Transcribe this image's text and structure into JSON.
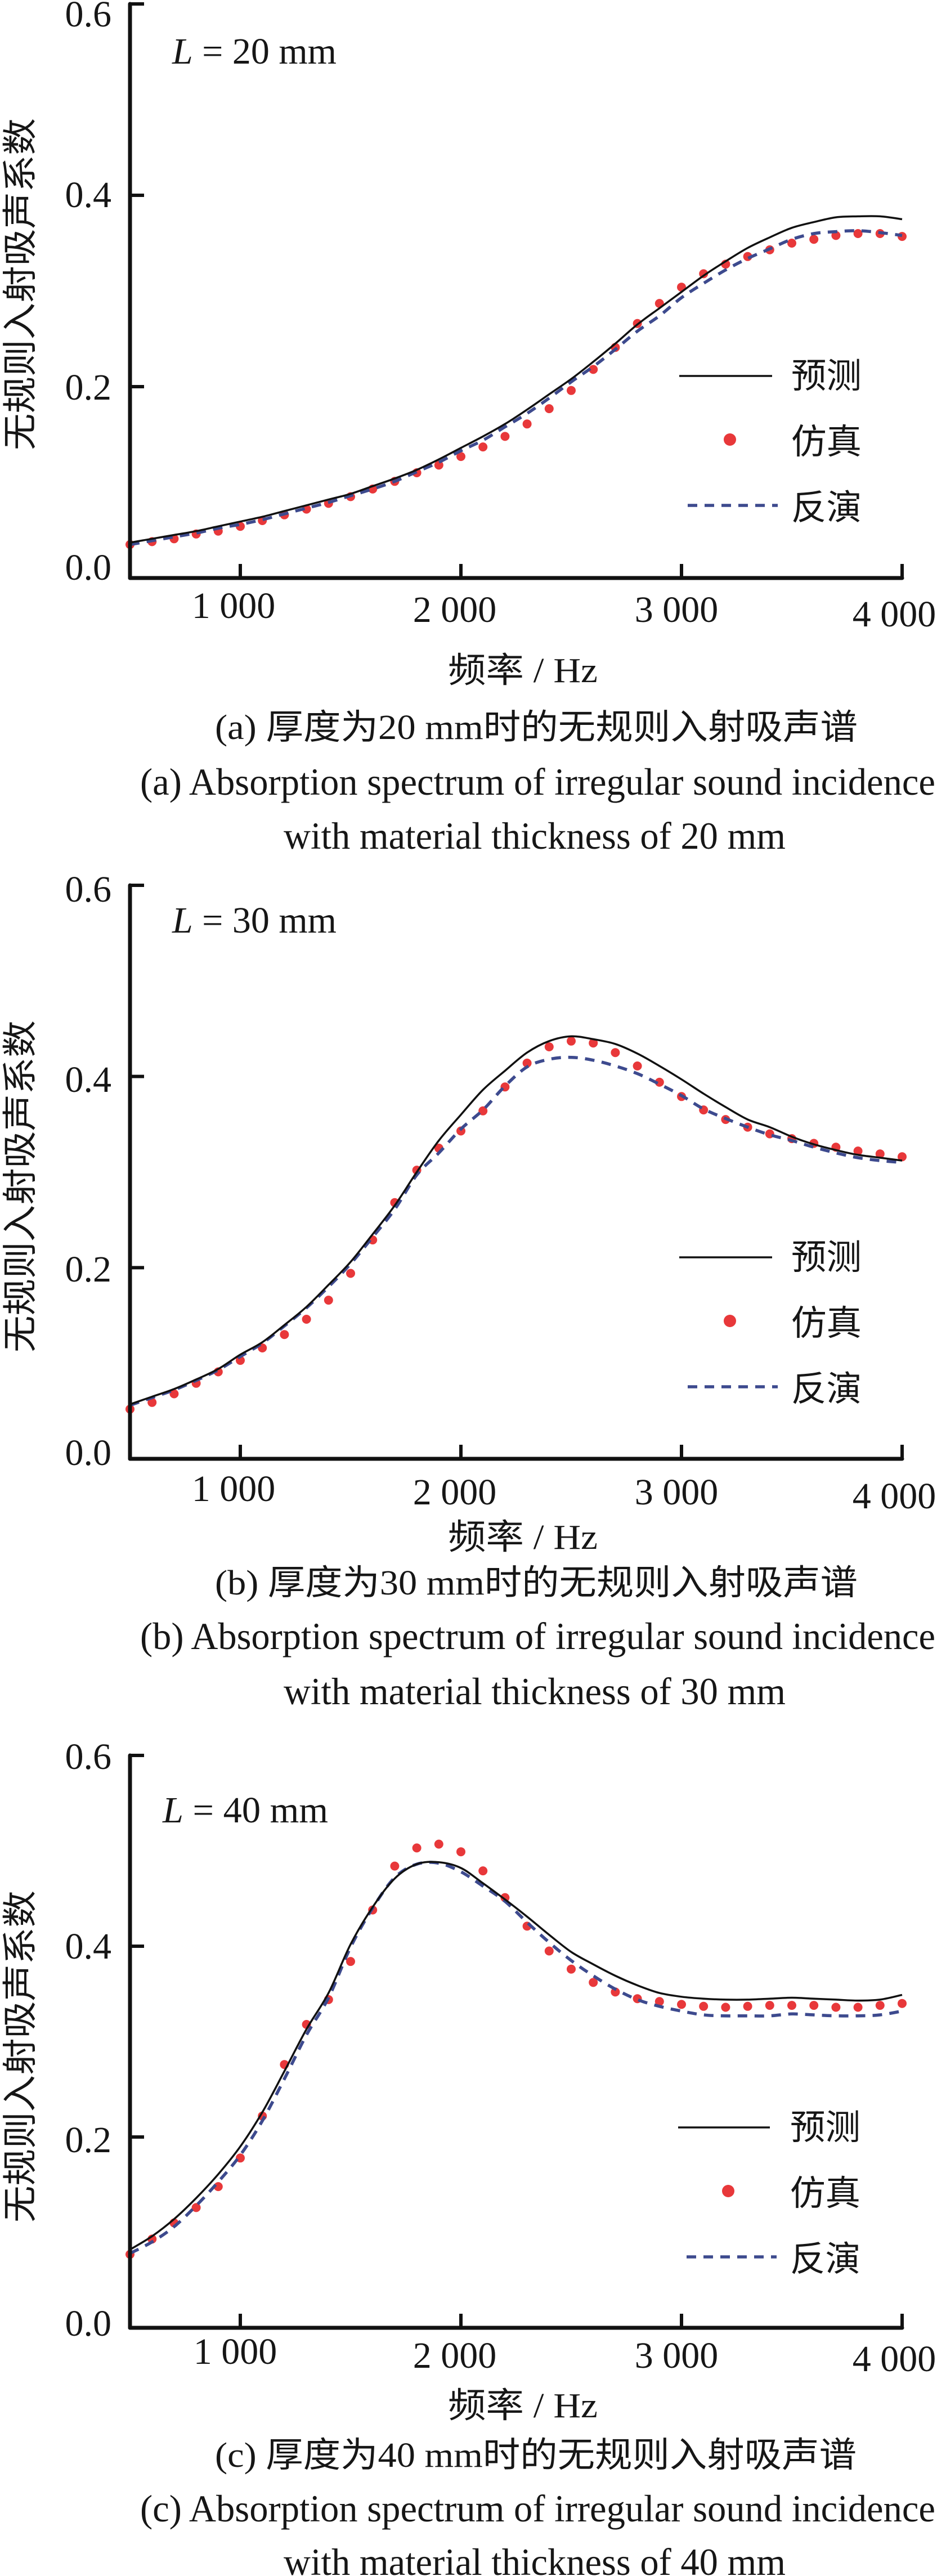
{
  "figure": {
    "panels": [
      {
        "label": "(a)",
        "caption_cn": "(a) 厚度为20 mm时的无规则入射吸声谱",
        "caption_en": [
          "(a) Absorption spectrum of irregular sound incidence",
          "with material thickness of 20 mm"
        ]
      },
      {
        "label": "(b)",
        "caption_cn": "(b) 厚度为30 mm时的无规则入射吸声谱",
        "caption_en": [
          "(b) Absorption spectrum of irregular sound incidence",
          "with material thickness of 30 mm"
        ]
      },
      {
        "label": "(c)",
        "caption_cn": "(c) 厚度为40 mm时的无规则入射吸声谱",
        "caption_en": [
          "(c) Absorption spectrum of irregular sound incidence",
          "with material thickness of 40 mm"
        ]
      }
    ]
  },
  "chart_data": [
    {
      "type": "line",
      "title": "",
      "annotation": {
        "variable": "L",
        "text": " = 20 mm"
      },
      "xlabel": "频率 / Hz",
      "ylabel": "无规则入射吸声系数",
      "xlim": [
        500,
        4000
      ],
      "ylim": [
        0,
        0.6
      ],
      "xticks": [
        1000,
        2000,
        3000,
        4000
      ],
      "xtick_labels": [
        "1 000",
        "2 000",
        "3 000",
        "4 000"
      ],
      "yticks": [
        0,
        0.2,
        0.4,
        0.6
      ],
      "ytick_labels": [
        "0.0",
        "0.2",
        "0.4",
        "0.6"
      ],
      "grid": false,
      "legend": {
        "position": "right"
      },
      "x": [
        500,
        600,
        700,
        800,
        900,
        1000,
        1100,
        1200,
        1300,
        1400,
        1500,
        1600,
        1700,
        1800,
        1900,
        2000,
        2100,
        2200,
        2300,
        2400,
        2500,
        2600,
        2700,
        2800,
        2900,
        3000,
        3100,
        3200,
        3300,
        3400,
        3500,
        3600,
        3700,
        3800,
        3900,
        4000
      ],
      "series": [
        {
          "name": "预测",
          "style": "solid-line",
          "color": "#111111",
          "values": [
            0.037,
            0.041,
            0.045,
            0.049,
            0.054,
            0.059,
            0.064,
            0.07,
            0.076,
            0.082,
            0.088,
            0.096,
            0.104,
            0.113,
            0.124,
            0.136,
            0.148,
            0.161,
            0.176,
            0.192,
            0.208,
            0.226,
            0.245,
            0.265,
            0.282,
            0.299,
            0.316,
            0.331,
            0.345,
            0.356,
            0.366,
            0.372,
            0.377,
            0.378,
            0.378,
            0.375
          ]
        },
        {
          "name": "仿真",
          "style": "markers",
          "color": "#e8383a",
          "values": [
            0.035,
            0.038,
            0.041,
            0.046,
            0.049,
            0.054,
            0.06,
            0.066,
            0.072,
            0.078,
            0.085,
            0.093,
            0.101,
            0.11,
            0.118,
            0.127,
            0.137,
            0.148,
            0.161,
            0.177,
            0.196,
            0.218,
            0.241,
            0.266,
            0.287,
            0.304,
            0.318,
            0.328,
            0.336,
            0.343,
            0.35,
            0.354,
            0.358,
            0.36,
            0.36,
            0.357
          ]
        },
        {
          "name": "反演",
          "style": "dashed-line",
          "color": "#3d4a8e",
          "values": [
            0.035,
            0.039,
            0.043,
            0.047,
            0.052,
            0.056,
            0.061,
            0.067,
            0.073,
            0.079,
            0.086,
            0.093,
            0.101,
            0.111,
            0.121,
            0.133,
            0.144,
            0.158,
            0.172,
            0.188,
            0.205,
            0.221,
            0.239,
            0.258,
            0.274,
            0.293,
            0.308,
            0.322,
            0.334,
            0.344,
            0.354,
            0.36,
            0.362,
            0.363,
            0.361,
            0.358
          ]
        }
      ]
    },
    {
      "type": "line",
      "title": "",
      "annotation": {
        "variable": "L",
        "text": " = 30 mm"
      },
      "xlabel": "频率 / Hz",
      "ylabel": "无规则入射吸声系数",
      "xlim": [
        500,
        4000
      ],
      "ylim": [
        0,
        0.6
      ],
      "xticks": [
        1000,
        2000,
        3000,
        4000
      ],
      "xtick_labels": [
        "1 000",
        "2 000",
        "3 000",
        "4 000"
      ],
      "yticks": [
        0,
        0.2,
        0.4,
        0.6
      ],
      "ytick_labels": [
        "0.0",
        "0.2",
        "0.4",
        "0.6"
      ],
      "grid": false,
      "legend": {
        "position": "right"
      },
      "x": [
        500,
        600,
        700,
        800,
        900,
        1000,
        1100,
        1200,
        1300,
        1400,
        1500,
        1600,
        1700,
        1800,
        1900,
        2000,
        2100,
        2200,
        2300,
        2400,
        2500,
        2600,
        2700,
        2800,
        2900,
        3000,
        3100,
        3200,
        3300,
        3400,
        3500,
        3600,
        3700,
        3800,
        3900,
        4000
      ],
      "series": [
        {
          "name": "预测",
          "style": "solid-line",
          "color": "#111111",
          "values": [
            0.057,
            0.065,
            0.073,
            0.083,
            0.094,
            0.109,
            0.122,
            0.14,
            0.159,
            0.182,
            0.206,
            0.235,
            0.265,
            0.3,
            0.333,
            0.36,
            0.386,
            0.406,
            0.425,
            0.437,
            0.442,
            0.439,
            0.434,
            0.424,
            0.411,
            0.397,
            0.382,
            0.368,
            0.355,
            0.347,
            0.337,
            0.329,
            0.323,
            0.318,
            0.315,
            0.312
          ]
        },
        {
          "name": "仿真",
          "style": "markers",
          "color": "#e8383a",
          "values": [
            0.052,
            0.059,
            0.068,
            0.079,
            0.091,
            0.103,
            0.116,
            0.13,
            0.146,
            0.166,
            0.194,
            0.229,
            0.268,
            0.302,
            0.325,
            0.343,
            0.364,
            0.389,
            0.414,
            0.431,
            0.437,
            0.435,
            0.425,
            0.411,
            0.394,
            0.379,
            0.365,
            0.355,
            0.347,
            0.34,
            0.335,
            0.33,
            0.326,
            0.322,
            0.319,
            0.316
          ]
        },
        {
          "name": "反演",
          "style": "dashed-line",
          "color": "#3d4a8e",
          "values": [
            0.056,
            0.064,
            0.072,
            0.082,
            0.093,
            0.107,
            0.121,
            0.139,
            0.158,
            0.18,
            0.204,
            0.232,
            0.261,
            0.297,
            0.32,
            0.345,
            0.365,
            0.39,
            0.41,
            0.418,
            0.42,
            0.417,
            0.411,
            0.403,
            0.392,
            0.38,
            0.366,
            0.356,
            0.347,
            0.339,
            0.333,
            0.326,
            0.32,
            0.315,
            0.312,
            0.31
          ]
        }
      ]
    },
    {
      "type": "line",
      "title": "",
      "annotation": {
        "variable": "L",
        "text": " = 40 mm"
      },
      "xlabel": "频率 / Hz",
      "ylabel": "无规则入射吸声系数",
      "xlim": [
        500,
        4000
      ],
      "ylim": [
        0,
        0.6
      ],
      "xticks": [
        1000,
        2000,
        3000,
        4000
      ],
      "xtick_labels": [
        "1 000",
        "2 000",
        "3 000",
        "4 000"
      ],
      "yticks": [
        0,
        0.2,
        0.4,
        0.6
      ],
      "ytick_labels": [
        "0.0",
        "0.2",
        "0.4",
        "0.6"
      ],
      "grid": false,
      "legend": {
        "position": "right"
      },
      "x": [
        500,
        600,
        700,
        800,
        900,
        1000,
        1100,
        1200,
        1300,
        1400,
        1500,
        1600,
        1700,
        1800,
        1900,
        2000,
        2100,
        2200,
        2300,
        2400,
        2500,
        2600,
        2700,
        2800,
        2900,
        3000,
        3100,
        3200,
        3300,
        3400,
        3500,
        3600,
        3700,
        3800,
        3900,
        4000
      ],
      "series": [
        {
          "name": "预测",
          "style": "solid-line",
          "color": "#111111",
          "values": [
            0.082,
            0.096,
            0.114,
            0.136,
            0.161,
            0.19,
            0.226,
            0.269,
            0.313,
            0.351,
            0.402,
            0.441,
            0.471,
            0.486,
            0.488,
            0.482,
            0.466,
            0.449,
            0.431,
            0.412,
            0.394,
            0.381,
            0.369,
            0.359,
            0.351,
            0.347,
            0.345,
            0.344,
            0.344,
            0.345,
            0.346,
            0.345,
            0.344,
            0.343,
            0.344,
            0.349
          ]
        },
        {
          "name": "仿真",
          "style": "markers",
          "color": "#e8383a",
          "values": [
            0.077,
            0.093,
            0.11,
            0.126,
            0.148,
            0.178,
            0.222,
            0.276,
            0.318,
            0.344,
            0.384,
            0.438,
            0.484,
            0.503,
            0.507,
            0.499,
            0.479,
            0.451,
            0.421,
            0.395,
            0.376,
            0.362,
            0.352,
            0.345,
            0.342,
            0.339,
            0.337,
            0.336,
            0.337,
            0.338,
            0.338,
            0.338,
            0.336,
            0.336,
            0.338,
            0.34
          ]
        },
        {
          "name": "反演",
          "style": "dashed-line",
          "color": "#3d4a8e",
          "values": [
            0.078,
            0.09,
            0.106,
            0.128,
            0.153,
            0.181,
            0.217,
            0.261,
            0.307,
            0.346,
            0.399,
            0.44,
            0.472,
            0.486,
            0.487,
            0.478,
            0.463,
            0.447,
            0.425,
            0.404,
            0.385,
            0.369,
            0.355,
            0.344,
            0.337,
            0.332,
            0.328,
            0.327,
            0.327,
            0.327,
            0.329,
            0.328,
            0.327,
            0.327,
            0.328,
            0.332
          ]
        }
      ]
    }
  ]
}
